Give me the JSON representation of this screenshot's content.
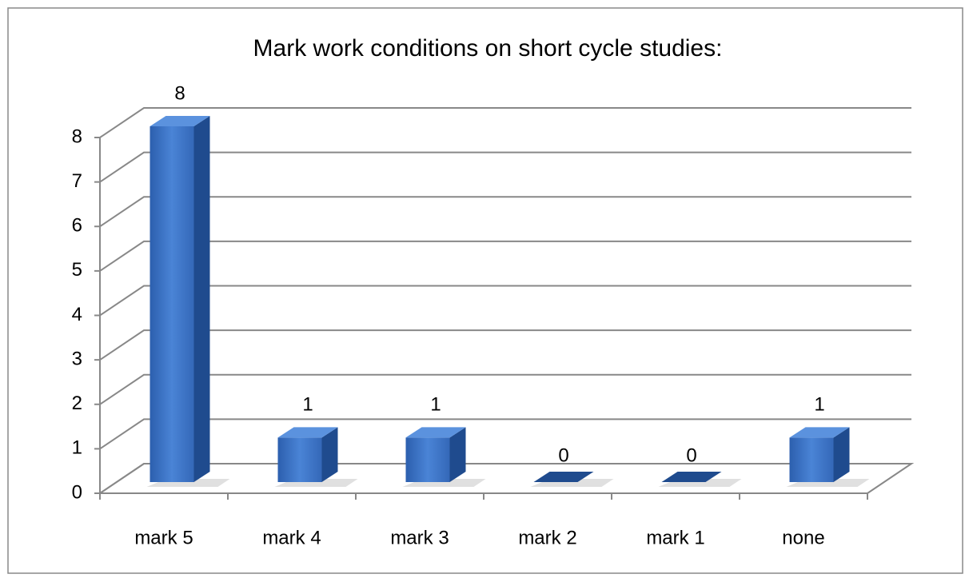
{
  "chart_data": {
    "type": "bar3d",
    "title": "Mark work conditions on  short cycle studies:",
    "categories": [
      "mark 5",
      "mark 4",
      "mark 3",
      "mark 2",
      "mark 1",
      "none"
    ],
    "values": [
      8,
      1,
      1,
      0,
      0,
      1
    ],
    "color": "#3a72c4",
    "ylim": [
      0,
      8
    ],
    "yticks": [
      0,
      1,
      2,
      3,
      4,
      5,
      6,
      7,
      8
    ],
    "grid": true
  }
}
